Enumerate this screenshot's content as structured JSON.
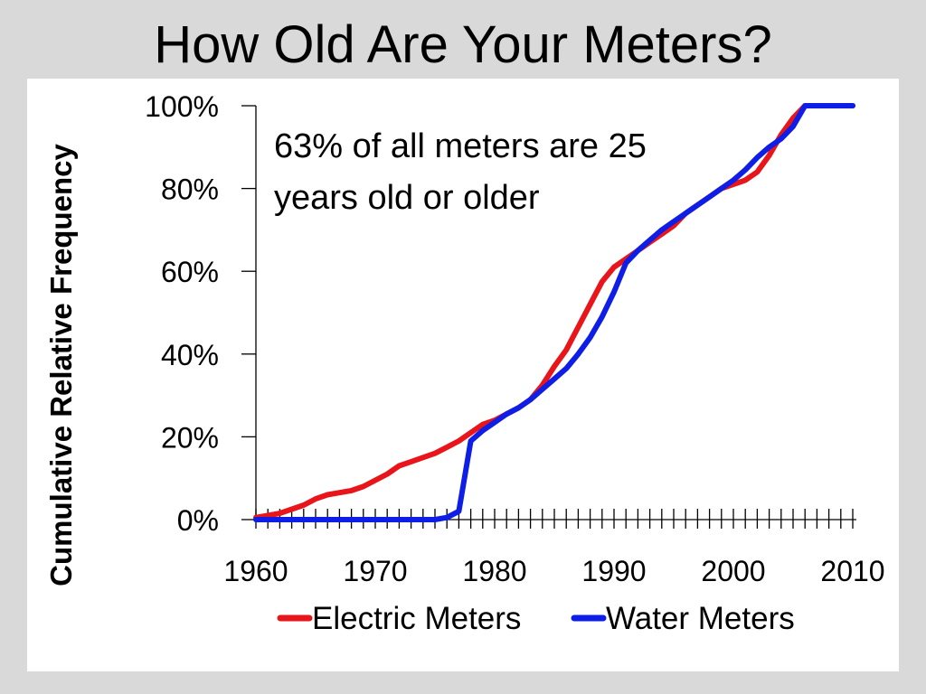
{
  "slide": {
    "title": "How Old Are Your Meters?"
  },
  "chart_data": {
    "type": "line",
    "title": "",
    "xlabel": "",
    "ylabel": "Cumulative Relative Frequency",
    "xlim": [
      1960,
      2010
    ],
    "ylim": [
      0,
      100
    ],
    "x_ticks": [
      "1960",
      "1970",
      "1980",
      "1990",
      "2000",
      "2010"
    ],
    "y_ticks": [
      "0%",
      "20%",
      "40%",
      "60%",
      "80%",
      "100%"
    ],
    "grid": false,
    "legend_position": "bottom",
    "annotation": [
      "63% of all meters are 25",
      "years old or older"
    ],
    "series": [
      {
        "name": "Electric Meters",
        "color": "#e8151b",
        "points": [
          [
            1960,
            0.5
          ],
          [
            1961,
            1
          ],
          [
            1962,
            1.5
          ],
          [
            1963,
            2.5
          ],
          [
            1964,
            3.5
          ],
          [
            1965,
            5
          ],
          [
            1966,
            6
          ],
          [
            1967,
            6.5
          ],
          [
            1968,
            7
          ],
          [
            1969,
            8
          ],
          [
            1970,
            9.5
          ],
          [
            1971,
            11
          ],
          [
            1972,
            13
          ],
          [
            1973,
            14
          ],
          [
            1974,
            15
          ],
          [
            1975,
            16
          ],
          [
            1976,
            17.5
          ],
          [
            1977,
            19
          ],
          [
            1978,
            21
          ],
          [
            1979,
            23
          ],
          [
            1980,
            24
          ],
          [
            1981,
            25.5
          ],
          [
            1982,
            27
          ],
          [
            1983,
            29
          ],
          [
            1984,
            32.5
          ],
          [
            1985,
            37
          ],
          [
            1986,
            41
          ],
          [
            1987,
            46.5
          ],
          [
            1988,
            52
          ],
          [
            1989,
            57.5
          ],
          [
            1990,
            61
          ],
          [
            1991,
            63
          ],
          [
            1992,
            65
          ],
          [
            1993,
            67
          ],
          [
            1994,
            69
          ],
          [
            1995,
            71
          ],
          [
            1996,
            74
          ],
          [
            1997,
            76
          ],
          [
            1998,
            78
          ],
          [
            1999,
            80
          ],
          [
            2000,
            81
          ],
          [
            2001,
            82
          ],
          [
            2002,
            84
          ],
          [
            2003,
            88
          ],
          [
            2004,
            93
          ],
          [
            2005,
            97
          ],
          [
            2006,
            100
          ],
          [
            2007,
            100
          ],
          [
            2008,
            100
          ],
          [
            2009,
            100
          ],
          [
            2010,
            100
          ]
        ]
      },
      {
        "name": "Water Meters",
        "color": "#0f1ee6",
        "points": [
          [
            1960,
            0
          ],
          [
            1961,
            0
          ],
          [
            1962,
            0
          ],
          [
            1963,
            0
          ],
          [
            1964,
            0
          ],
          [
            1965,
            0
          ],
          [
            1966,
            0
          ],
          [
            1967,
            0
          ],
          [
            1968,
            0
          ],
          [
            1969,
            0
          ],
          [
            1970,
            0
          ],
          [
            1971,
            0
          ],
          [
            1972,
            0
          ],
          [
            1973,
            0
          ],
          [
            1974,
            0
          ],
          [
            1975,
            0
          ],
          [
            1976,
            0.5
          ],
          [
            1977,
            2
          ],
          [
            1978,
            19
          ],
          [
            1979,
            21.5
          ],
          [
            1980,
            23.5
          ],
          [
            1981,
            25.5
          ],
          [
            1982,
            27
          ],
          [
            1983,
            29
          ],
          [
            1984,
            31.5
          ],
          [
            1985,
            34
          ],
          [
            1986,
            36.5
          ],
          [
            1987,
            40
          ],
          [
            1988,
            44
          ],
          [
            1989,
            49
          ],
          [
            1990,
            55
          ],
          [
            1991,
            62
          ],
          [
            1992,
            65
          ],
          [
            1993,
            67.5
          ],
          [
            1994,
            70
          ],
          [
            1995,
            72
          ],
          [
            1996,
            74
          ],
          [
            1997,
            76
          ],
          [
            1998,
            78
          ],
          [
            1999,
            80
          ],
          [
            2000,
            82
          ],
          [
            2001,
            84.5
          ],
          [
            2002,
            87.5
          ],
          [
            2003,
            90
          ],
          [
            2004,
            92
          ],
          [
            2005,
            95
          ],
          [
            2006,
            100
          ],
          [
            2007,
            100
          ],
          [
            2008,
            100
          ],
          [
            2009,
            100
          ],
          [
            2010,
            100
          ]
        ]
      }
    ]
  }
}
